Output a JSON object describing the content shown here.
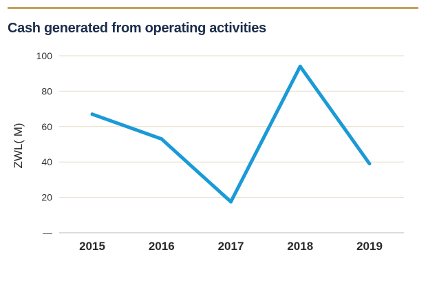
{
  "chart_data": {
    "type": "line",
    "title": "Cash generated from operating activities",
    "xlabel": "",
    "ylabel": "ZWL( M)",
    "categories": [
      "2015",
      "2016",
      "2017",
      "2018",
      "2019"
    ],
    "series": [
      {
        "name": "Cash generated from operating activities",
        "values": [
          67,
          53,
          17.5,
          94,
          39
        ]
      }
    ],
    "ylim": [
      0,
      100
    ],
    "yticks": [
      100,
      80,
      60,
      40,
      20
    ],
    "ytick_labels": [
      "100",
      "80",
      "60",
      "40",
      "20"
    ],
    "zero_tick_label": "—",
    "grid": true,
    "line_color": "#1a9ad7",
    "grid_color": "#e6dcc4",
    "accent_color": "#c2a15a",
    "title_color": "#1c2d4c"
  }
}
